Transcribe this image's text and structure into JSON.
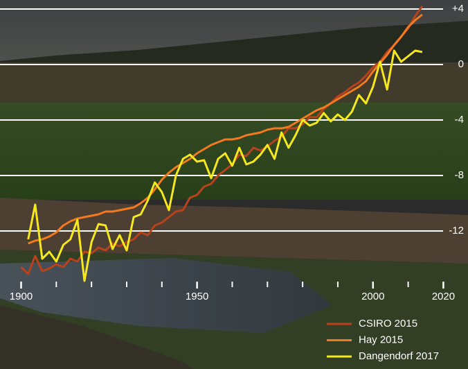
{
  "chart_data": {
    "type": "line",
    "x": [
      1900,
      1902,
      1904,
      1906,
      1908,
      1910,
      1912,
      1914,
      1916,
      1918,
      1920,
      1922,
      1924,
      1926,
      1928,
      1930,
      1932,
      1934,
      1936,
      1938,
      1940,
      1942,
      1944,
      1946,
      1948,
      1950,
      1952,
      1954,
      1956,
      1958,
      1960,
      1962,
      1964,
      1966,
      1968,
      1970,
      1972,
      1974,
      1976,
      1978,
      1980,
      1982,
      1984,
      1986,
      1988,
      1990,
      1992,
      1994,
      1996,
      1998,
      2000,
      2002,
      2004,
      2006,
      2008,
      2010,
      2012,
      2014
    ],
    "series": [
      {
        "name": "CSIRO 2015",
        "color": "#b8421c",
        "values": [
          -14.6,
          -15.1,
          -13.8,
          -14.9,
          -14.7,
          -14.4,
          -14.6,
          -14.0,
          -14.2,
          -13.5,
          -13.6,
          -13.2,
          -13.4,
          -12.9,
          -13.1,
          -12.8,
          -12.6,
          -12.1,
          -12.3,
          -11.6,
          -11.4,
          -11.0,
          -10.6,
          -10.5,
          -9.6,
          -9.4,
          -8.8,
          -8.6,
          -8.0,
          -7.6,
          -7.2,
          -6.5,
          -6.6,
          -6.0,
          -6.2,
          -5.9,
          -5.5,
          -5.2,
          -4.6,
          -4.6,
          -4.3,
          -3.8,
          -3.8,
          -3.2,
          -2.8,
          -2.3,
          -2.0,
          -1.6,
          -1.3,
          -0.8,
          -0.2,
          0.2,
          0.9,
          1.4,
          2.0,
          2.6,
          3.5,
          4.2
        ]
      },
      {
        "name": "Hay 2015",
        "color": "#f47a1f",
        "values": [
          null,
          -12.9,
          -12.7,
          -12.6,
          -12.4,
          -12.1,
          -11.6,
          -11.3,
          -11.1,
          -11.0,
          -10.9,
          -10.8,
          -10.6,
          -10.6,
          -10.5,
          -10.4,
          -10.3,
          -10.0,
          -9.6,
          -9.0,
          -8.3,
          -7.8,
          -7.4,
          -7.1,
          -6.8,
          -6.4,
          -6.1,
          -5.8,
          -5.6,
          -5.4,
          -5.4,
          -5.3,
          -5.1,
          -5.0,
          -4.9,
          -4.7,
          -4.6,
          -4.6,
          -4.5,
          -4.2,
          -3.9,
          -3.6,
          -3.3,
          -3.1,
          -2.8,
          -2.5,
          -2.2,
          -1.9,
          -1.6,
          -1.2,
          -0.5,
          0.1,
          0.7,
          1.4,
          2.0,
          2.7,
          3.2,
          3.6
        ]
      },
      {
        "name": "Dangendorf 2017",
        "color": "#f7e81c",
        "values": [
          null,
          -12.6,
          -10.1,
          -14.0,
          -13.5,
          -14.2,
          -13.0,
          -12.6,
          -11.2,
          -15.6,
          -12.8,
          -11.5,
          -11.6,
          -13.3,
          -12.3,
          -13.4,
          -11.0,
          -10.8,
          -9.8,
          -8.5,
          -9.2,
          -10.5,
          -8.0,
          -6.8,
          -6.5,
          -7.0,
          -6.9,
          -8.2,
          -6.8,
          -6.4,
          -7.3,
          -6.0,
          -7.2,
          -7.0,
          -6.5,
          -5.8,
          -6.8,
          -4.9,
          -6.0,
          -5.1,
          -4.0,
          -4.4,
          -4.2,
          -3.5,
          -4.1,
          -3.6,
          -4.0,
          -3.4,
          -2.2,
          -2.8,
          -1.6,
          0.2,
          -1.8,
          1.0,
          0.2,
          0.6,
          1.0,
          0.9
        ]
      }
    ],
    "xlim": [
      1894,
      2027
    ],
    "xticks": [
      1900,
      1950,
      2000,
      2020
    ],
    "xticks_minor": [
      1910,
      1920,
      1930,
      1940,
      1960,
      1970,
      1980,
      1990,
      2010
    ],
    "ylim": [
      -16,
      4.5
    ],
    "yticks": [
      {
        "value": 4,
        "label": "+4"
      },
      0,
      -4,
      -8,
      -12
    ],
    "grid": true,
    "legend": "lower right"
  }
}
